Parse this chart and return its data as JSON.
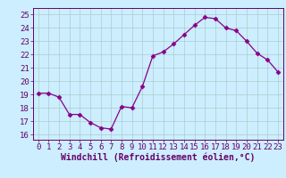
{
  "x": [
    0,
    1,
    2,
    3,
    4,
    5,
    6,
    7,
    8,
    9,
    10,
    11,
    12,
    13,
    14,
    15,
    16,
    17,
    18,
    19,
    20,
    21,
    22,
    23
  ],
  "y": [
    19.1,
    19.1,
    18.8,
    17.5,
    17.5,
    16.9,
    16.5,
    16.4,
    18.1,
    18.0,
    19.6,
    21.9,
    22.2,
    22.8,
    23.5,
    24.2,
    24.8,
    24.7,
    24.0,
    23.8,
    23.0,
    22.1,
    21.6,
    20.7
  ],
  "line_color": "#880088",
  "marker": "D",
  "marker_size": 2.5,
  "bg_color": "#cceeff",
  "grid_color": "#aacccc",
  "ylabel_ticks": [
    16,
    17,
    18,
    19,
    20,
    21,
    22,
    23,
    24,
    25
  ],
  "xlabel": "Windchill (Refroidissement éolien,°C)",
  "ylim": [
    15.6,
    25.5
  ],
  "xlim": [
    -0.5,
    23.5
  ],
  "axis_color": "#660066",
  "tick_color": "#660066",
  "xlabel_color": "#660066",
  "label_fontsize": 7,
  "tick_fontsize": 6.5
}
